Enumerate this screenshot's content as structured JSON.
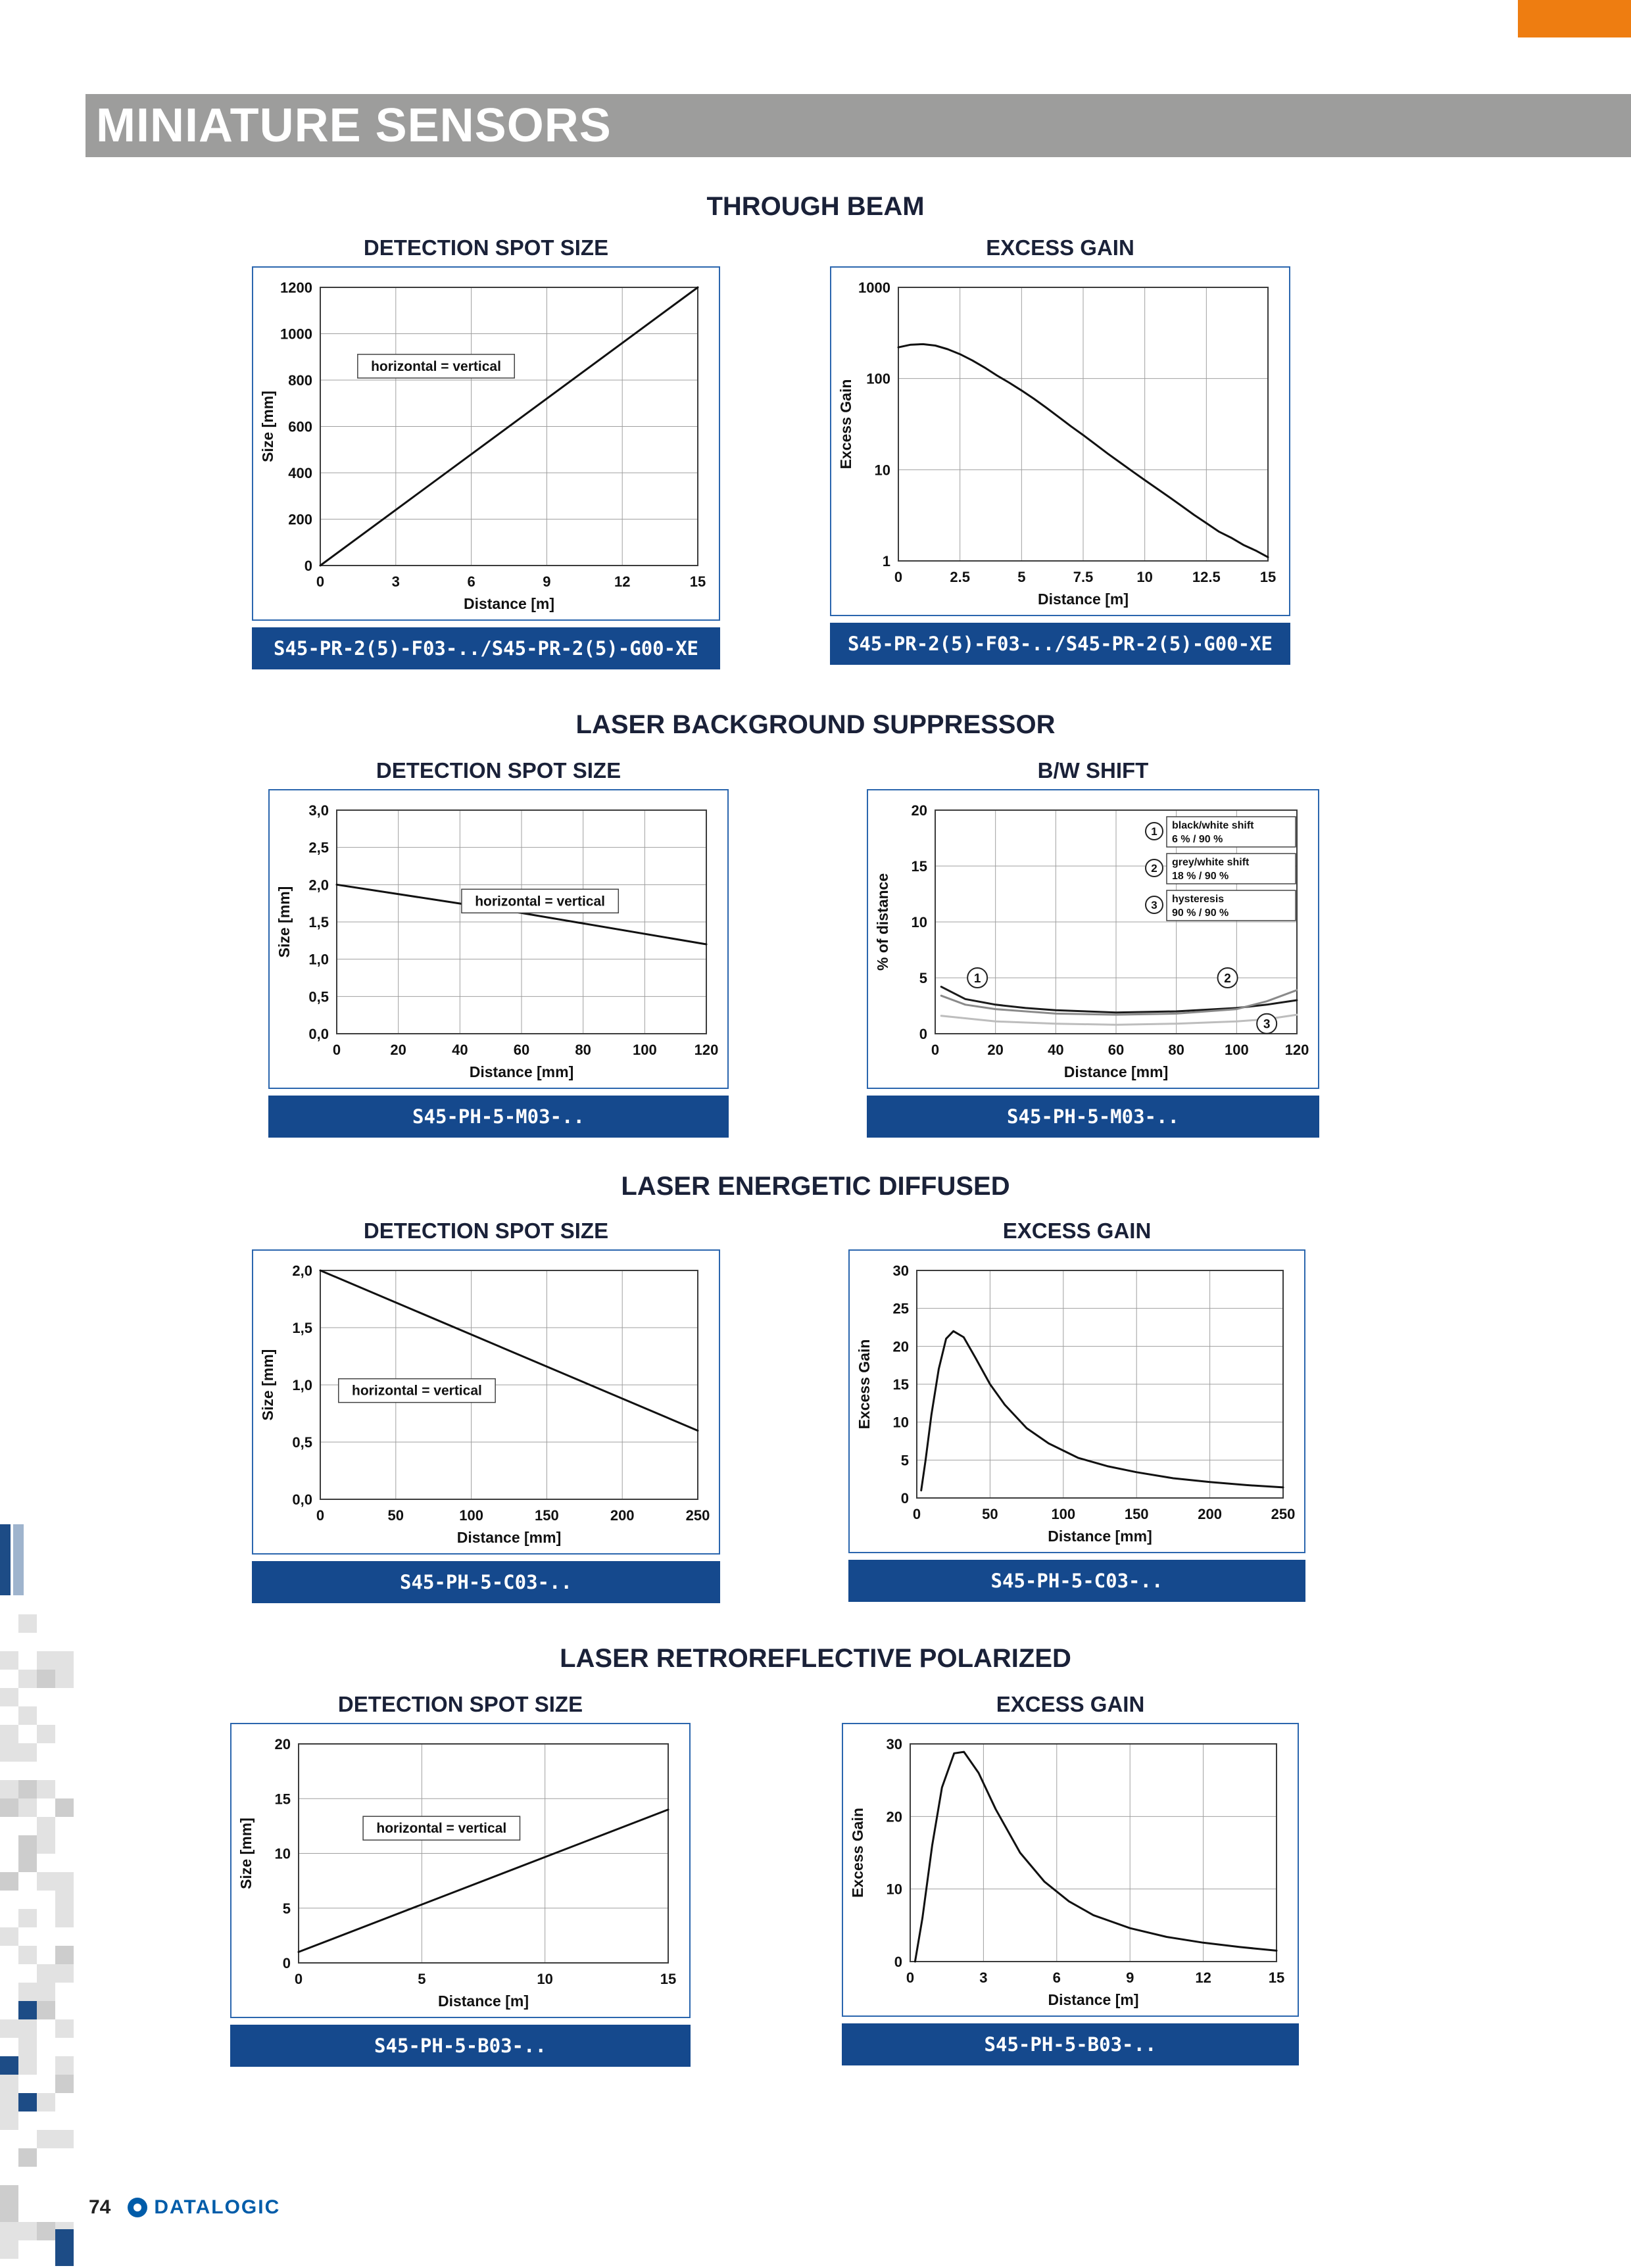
{
  "page": {
    "header_title": "MINIATURE SENSORS",
    "page_number": "74",
    "brand": "DATALOGIC"
  },
  "colors": {
    "header_gray": "#9d9d9c",
    "corner_orange": "#ee7d11",
    "caption_blue": "#15498d",
    "frame_blue": "#2b66ae",
    "brand_blue": "#005ca9"
  },
  "sections": [
    {
      "heading": "THROUGH BEAM"
    },
    {
      "heading": "LASER BACKGROUND SUPPRESSOR"
    },
    {
      "heading": "LASER ENERGETIC DIFFUSED"
    },
    {
      "heading": "LASER RETROREFLECTIVE POLARIZED"
    }
  ],
  "chart_data": [
    {
      "id": "through-beam-detection-spot-size",
      "type": "line",
      "title": "DETECTION SPOT SIZE",
      "caption": "S45-PR-2(5)-F03-../S45-PR-2(5)-G00-XE",
      "xlabel": "Distance [m]",
      "ylabel": "Size [mm]",
      "xlim": [
        0,
        15
      ],
      "ylim": [
        0,
        1200
      ],
      "xticks": {
        "values": [
          0,
          3,
          6,
          9,
          12,
          15
        ],
        "labels": [
          "0",
          "3",
          "6",
          "9",
          "12",
          "15"
        ]
      },
      "yticks": {
        "values": [
          0,
          200,
          400,
          600,
          800,
          1000,
          1200
        ],
        "labels": [
          "0",
          "200",
          "400",
          "600",
          "800",
          "1000",
          "1200"
        ]
      },
      "annotation": {
        "text": "horizontal = vertical",
        "x": 4.6,
        "y": 860
      },
      "series": [
        {
          "name": "spot size",
          "x": [
            0,
            15
          ],
          "y": [
            0,
            1200
          ]
        }
      ]
    },
    {
      "id": "through-beam-excess-gain",
      "type": "line",
      "title": "EXCESS GAIN",
      "caption": "S45-PR-2(5)-F03-../S45-PR-2(5)-G00-XE",
      "xlabel": "Distance [m]",
      "ylabel": "Excess Gain",
      "yscale": "log",
      "xlim": [
        0,
        15
      ],
      "ylim": [
        1,
        1000
      ],
      "xticks": {
        "values": [
          0,
          2.5,
          5,
          7.5,
          10,
          12.5,
          15
        ],
        "labels": [
          "0",
          "2.5",
          "5",
          "7.5",
          "10",
          "12.5",
          "15"
        ]
      },
      "yticks": {
        "values": [
          1,
          10,
          100,
          1000
        ],
        "labels": [
          "1",
          "10",
          "100",
          "1000"
        ]
      },
      "series": [
        {
          "name": "excess gain",
          "x": [
            0,
            0.5,
            1,
            1.5,
            2,
            2.5,
            3,
            3.5,
            4,
            4.5,
            5,
            5.5,
            6,
            6.5,
            7,
            7.5,
            8,
            8.5,
            9,
            9.5,
            10,
            10.5,
            11,
            11.5,
            12,
            12.5,
            13,
            13.5,
            14,
            14.5,
            15
          ],
          "y": [
            220,
            235,
            238,
            230,
            210,
            185,
            158,
            132,
            108,
            90,
            74,
            60,
            48,
            38,
            30,
            24,
            19,
            15,
            12,
            9.6,
            7.7,
            6.2,
            5,
            4,
            3.2,
            2.6,
            2.1,
            1.8,
            1.5,
            1.3,
            1.1
          ]
        }
      ]
    },
    {
      "id": "laser-bgs-detection-spot-size",
      "type": "line",
      "title": "DETECTION SPOT SIZE",
      "caption": "S45-PH-5-M03-..",
      "xlabel": "Distance [mm]",
      "ylabel": "Size [mm]",
      "xlim": [
        0,
        120
      ],
      "ylim": [
        0,
        3
      ],
      "xticks": {
        "values": [
          0,
          20,
          40,
          60,
          80,
          100,
          120
        ],
        "labels": [
          "0",
          "20",
          "40",
          "60",
          "80",
          "100",
          "120"
        ]
      },
      "yticks": {
        "values": [
          0,
          0.5,
          1,
          1.5,
          2,
          2.5,
          3
        ],
        "labels": [
          "0,0",
          "0,5",
          "1,0",
          "1,5",
          "2,0",
          "2,5",
          "3,0"
        ]
      },
      "annotation": {
        "text": "horizontal = vertical",
        "x": 66,
        "y": 1.78
      },
      "series": [
        {
          "name": "spot size",
          "x": [
            0,
            60,
            120
          ],
          "y": [
            2.0,
            1.62,
            1.2
          ]
        }
      ]
    },
    {
      "id": "laser-bgs-bw-shift",
      "type": "line",
      "title": "B/W SHIFT",
      "caption": "S45-PH-5-M03-..",
      "xlabel": "Distance [mm]",
      "ylabel": "% of distance",
      "xlim": [
        0,
        120
      ],
      "ylim": [
        0,
        20
      ],
      "xticks": {
        "values": [
          0,
          20,
          40,
          60,
          80,
          100,
          120
        ],
        "labels": [
          "0",
          "20",
          "40",
          "60",
          "80",
          "100",
          "120"
        ]
      },
      "yticks": {
        "values": [
          0,
          5,
          10,
          15,
          20
        ],
        "labels": [
          "0",
          "5",
          "10",
          "15",
          "20"
        ]
      },
      "series": [
        {
          "name": "black/white shift",
          "color": "#1a1a1a",
          "x": [
            2,
            10,
            20,
            30,
            40,
            60,
            80,
            100,
            110,
            120
          ],
          "y": [
            4.2,
            3.1,
            2.6,
            2.3,
            2.1,
            1.9,
            2.0,
            2.3,
            2.6,
            3.0
          ]
        },
        {
          "name": "grey/white shift",
          "color": "#8a8a8a",
          "x": [
            2,
            10,
            20,
            40,
            60,
            80,
            100,
            110,
            120
          ],
          "y": [
            3.4,
            2.6,
            2.2,
            1.8,
            1.7,
            1.8,
            2.2,
            2.9,
            3.9
          ]
        },
        {
          "name": "hysteresis",
          "color": "#bdbdbd",
          "x": [
            2,
            20,
            40,
            60,
            80,
            100,
            110,
            120
          ],
          "y": [
            1.6,
            1.1,
            0.9,
            0.8,
            0.9,
            1.1,
            1.3,
            1.7
          ]
        }
      ],
      "markers": [
        {
          "label": "1",
          "x": 14,
          "y": 5
        },
        {
          "label": "2",
          "x": 97,
          "y": 5
        },
        {
          "label": "3",
          "x": 110,
          "y": 0.9
        }
      ],
      "legend": [
        {
          "num": "1",
          "lines": [
            "black/white shift",
            "6 % / 90 %"
          ]
        },
        {
          "num": "2",
          "lines": [
            "grey/white shift",
            "18 % / 90 %"
          ]
        },
        {
          "num": "3",
          "lines": [
            "hysteresis",
            "90 % / 90 %"
          ]
        }
      ]
    },
    {
      "id": "laser-energetic-detection-spot-size",
      "type": "line",
      "title": "DETECTION SPOT SIZE",
      "caption": "S45-PH-5-C03-..",
      "xlabel": "Distance [mm]",
      "ylabel": "Size [mm]",
      "xlim": [
        0,
        250
      ],
      "ylim": [
        0,
        2
      ],
      "xticks": {
        "values": [
          0,
          50,
          100,
          150,
          200,
          250
        ],
        "labels": [
          "0",
          "50",
          "100",
          "150",
          "200",
          "250"
        ]
      },
      "yticks": {
        "values": [
          0,
          0.5,
          1,
          1.5,
          2
        ],
        "labels": [
          "0,0",
          "0,5",
          "1,0",
          "1,5",
          "2,0"
        ]
      },
      "annotation": {
        "text": "horizontal = vertical",
        "x": 64,
        "y": 0.95
      },
      "series": [
        {
          "name": "spot size",
          "x": [
            0,
            250
          ],
          "y": [
            2.0,
            0.6
          ]
        }
      ]
    },
    {
      "id": "laser-energetic-excess-gain",
      "type": "line",
      "title": "EXCESS GAIN",
      "caption": "S45-PH-5-C03-..",
      "xlabel": "Distance [mm]",
      "ylabel": "Excess Gain",
      "xlim": [
        0,
        250
      ],
      "ylim": [
        0,
        30
      ],
      "xticks": {
        "values": [
          0,
          50,
          100,
          150,
          200,
          250
        ],
        "labels": [
          "0",
          "50",
          "100",
          "150",
          "200",
          "250"
        ]
      },
      "yticks": {
        "values": [
          0,
          5,
          10,
          15,
          20,
          25,
          30
        ],
        "labels": [
          "0",
          "5",
          "10",
          "15",
          "20",
          "25",
          "30"
        ]
      },
      "series": [
        {
          "name": "excess gain",
          "x": [
            3,
            6,
            10,
            15,
            20,
            25,
            32,
            40,
            50,
            60,
            75,
            90,
            110,
            130,
            150,
            175,
            200,
            225,
            250
          ],
          "y": [
            1,
            5,
            11,
            17,
            21,
            22,
            21.2,
            18.5,
            15,
            12.3,
            9.2,
            7.2,
            5.3,
            4.2,
            3.4,
            2.6,
            2.1,
            1.7,
            1.4
          ]
        }
      ]
    },
    {
      "id": "laser-retro-detection-spot-size",
      "type": "line",
      "title": "DETECTION SPOT SIZE",
      "caption": "S45-PH-5-B03-..",
      "xlabel": "Distance [m]",
      "ylabel": "Size [mm]",
      "xlim": [
        0,
        15
      ],
      "ylim": [
        0,
        20
      ],
      "xticks": {
        "values": [
          0,
          5,
          10,
          15
        ],
        "labels": [
          "0",
          "5",
          "10",
          "15"
        ]
      },
      "yticks": {
        "values": [
          0,
          5,
          10,
          15,
          20
        ],
        "labels": [
          "0",
          "5",
          "10",
          "15",
          "20"
        ]
      },
      "annotation": {
        "text": "horizontal = vertical",
        "x": 5.8,
        "y": 12.3
      },
      "series": [
        {
          "name": "spot size",
          "x": [
            0,
            15
          ],
          "y": [
            1,
            14
          ]
        }
      ]
    },
    {
      "id": "laser-retro-excess-gain",
      "type": "line",
      "title": "EXCESS GAIN",
      "caption": "S45-PH-5-B03-..",
      "xlabel": "Distance [m]",
      "ylabel": "Excess Gain",
      "xlim": [
        0,
        15
      ],
      "ylim": [
        0,
        30
      ],
      "xticks": {
        "values": [
          0,
          3,
          6,
          9,
          12,
          15
        ],
        "labels": [
          "0",
          "3",
          "6",
          "9",
          "12",
          "15"
        ]
      },
      "yticks": {
        "values": [
          0,
          10,
          20,
          30
        ],
        "labels": [
          "0",
          "10",
          "20",
          "30"
        ]
      },
      "series": [
        {
          "name": "excess gain",
          "x": [
            0.2,
            0.5,
            0.9,
            1.3,
            1.8,
            2.2,
            2.8,
            3.5,
            4.5,
            5.5,
            6.5,
            7.5,
            9,
            10.5,
            12,
            13.5,
            15
          ],
          "y": [
            0,
            6,
            16,
            24,
            28.7,
            28.9,
            26,
            21,
            15,
            11,
            8.3,
            6.4,
            4.6,
            3.4,
            2.6,
            2,
            1.5
          ]
        }
      ]
    }
  ]
}
